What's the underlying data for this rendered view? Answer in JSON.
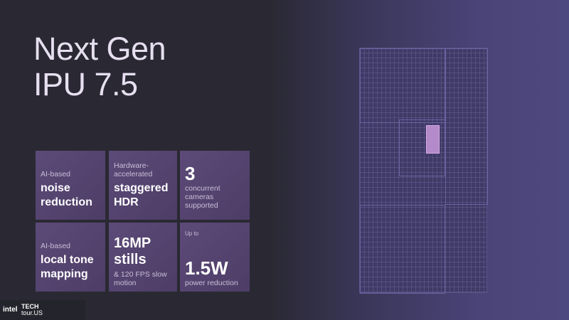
{
  "title": {
    "line1": "Next Gen",
    "line2": "IPU 7.5"
  },
  "tiles": [
    {
      "small": "AI-based",
      "bold": "noise reduction"
    },
    {
      "small": "Hardware-accelerated",
      "bold": "staggered HDR"
    },
    {
      "big": "3",
      "small": "concurrent cameras supported"
    },
    {
      "small": "AI-based",
      "bold": "local tone mapping"
    },
    {
      "big": "16MP stills",
      "small": "& 120 FPS slow motion"
    },
    {
      "top": "Up to",
      "big": "1.5W",
      "small": "power reduction"
    }
  ],
  "logo": {
    "brand": "intel",
    "event_line1": "TECH",
    "event_line2": "tour.US"
  },
  "colors": {
    "tile": "#5c4a78",
    "background": "#2a2933",
    "chip_highlight": "#b48acb"
  }
}
